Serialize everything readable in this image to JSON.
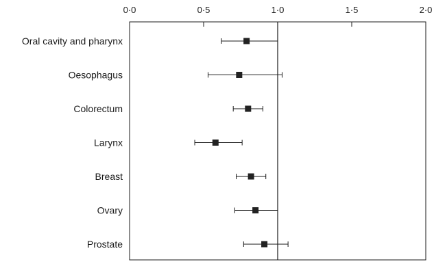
{
  "chart_data": {
    "type": "forest",
    "title": "",
    "xlabel": "",
    "ylabel": "",
    "xlim": [
      0,
      2
    ],
    "xticks": [
      {
        "value": 0,
        "label": "0·0"
      },
      {
        "value": 0.5,
        "label": "0·5"
      },
      {
        "value": 1,
        "label": "1·0"
      },
      {
        "value": 1.5,
        "label": "1·5"
      },
      {
        "value": 2,
        "label": "2·0"
      }
    ],
    "reference_line": 1.0,
    "grid": false,
    "legend": "none",
    "marker_color": "#222222",
    "rows": [
      {
        "label": "Oral cavity and pharynx",
        "estimate": 0.79,
        "lower": 0.62,
        "upper": 1.0
      },
      {
        "label": "Oesophagus",
        "estimate": 0.74,
        "lower": 0.53,
        "upper": 1.03
      },
      {
        "label": "Colorectum",
        "estimate": 0.8,
        "lower": 0.7,
        "upper": 0.9
      },
      {
        "label": "Larynx",
        "estimate": 0.58,
        "lower": 0.44,
        "upper": 0.76
      },
      {
        "label": "Breast",
        "estimate": 0.82,
        "lower": 0.72,
        "upper": 0.92
      },
      {
        "label": "Ovary",
        "estimate": 0.85,
        "lower": 0.71,
        "upper": 1.0
      },
      {
        "label": "Prostate",
        "estimate": 0.91,
        "lower": 0.77,
        "upper": 1.07
      }
    ]
  }
}
